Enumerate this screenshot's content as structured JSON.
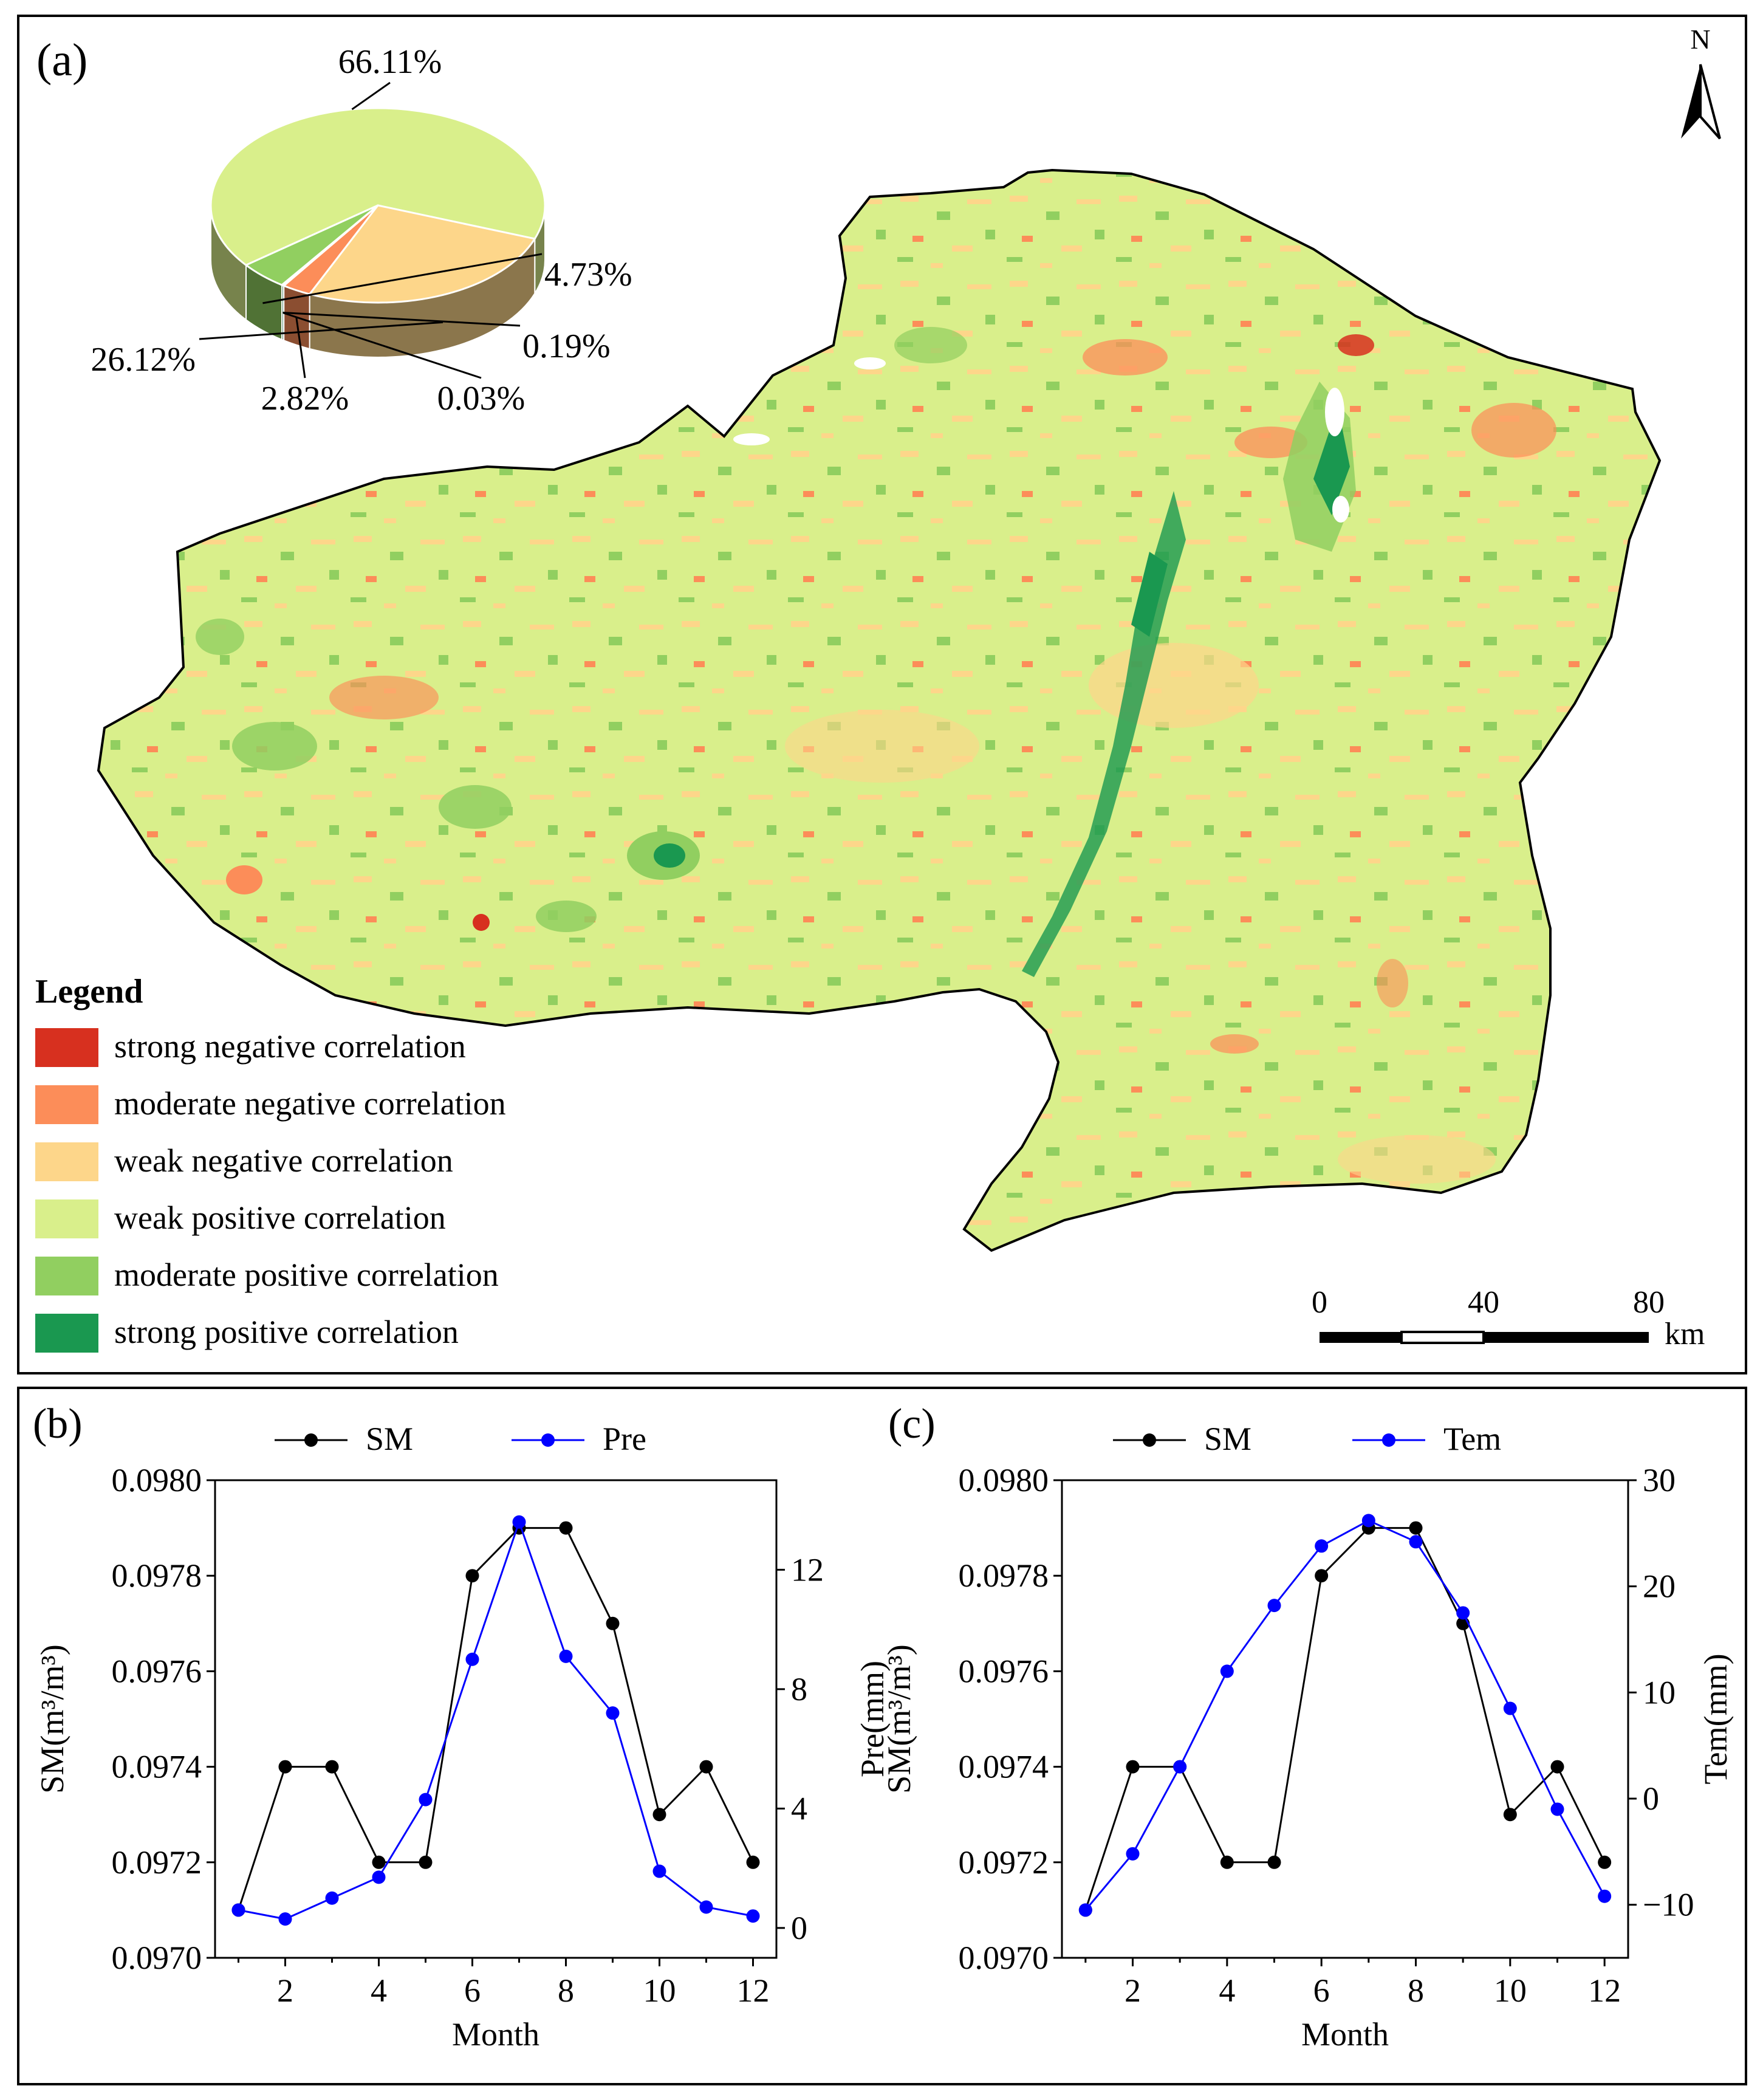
{
  "panel_a": {
    "label": "(a)",
    "north_label": "N",
    "legend": {
      "title": "Legend",
      "items": [
        {
          "label": "strong negative correlation",
          "color": "#d7301f"
        },
        {
          "label": "moderate negative correlation",
          "color": "#fc8d59"
        },
        {
          "label": "weak negative correlation",
          "color": "#fdd68a"
        },
        {
          "label": "weak positive correlation",
          "color": "#d9ef8b"
        },
        {
          "label": "moderate positive correlation",
          "color": "#91cf60"
        },
        {
          "label": "strong positive correlation",
          "color": "#1a9850"
        }
      ]
    },
    "scale_bar": {
      "ticks": [
        "0",
        "40",
        "80"
      ],
      "unit": "km"
    },
    "pie": {
      "type": "pie",
      "slices": [
        {
          "category": "weak positive correlation",
          "value": 66.11,
          "label": "66.11%",
          "color": "#d9ef8b"
        },
        {
          "category": "weak negative correlation",
          "value": 26.12,
          "label": "26.12%",
          "color": "#fdd68a"
        },
        {
          "category": "moderate negative correlation",
          "value": 2.82,
          "label": "2.82%",
          "color": "#fc8d59"
        },
        {
          "category": "strong negative correlation",
          "value": 0.03,
          "label": "0.03%",
          "color": "#d7301f"
        },
        {
          "category": "strong positive correlation",
          "value": 0.19,
          "label": "0.19%",
          "color": "#1a9850"
        },
        {
          "category": "moderate positive correlation",
          "value": 4.73,
          "label": "4.73%",
          "color": "#91cf60"
        }
      ]
    }
  },
  "chart_data": [
    {
      "type": "line",
      "panel_label": "(b)",
      "x": [
        1,
        2,
        3,
        4,
        5,
        6,
        7,
        8,
        9,
        10,
        11,
        12
      ],
      "xlabel": "Month",
      "xticks": [
        2,
        4,
        6,
        8,
        10,
        12
      ],
      "xlim": [
        0.5,
        12.5
      ],
      "series": [
        {
          "name": "SM",
          "axis": "left",
          "color": "#000000",
          "values": [
            0.0971,
            0.0974,
            0.0974,
            0.0972,
            0.0972,
            0.0978,
            0.0979,
            0.0979,
            0.0977,
            0.0973,
            0.0974,
            0.0972
          ]
        },
        {
          "name": "Pre",
          "axis": "right",
          "color": "#0000ff",
          "values": [
            0.6,
            0.3,
            1.0,
            1.7,
            4.3,
            9.0,
            13.6,
            9.1,
            7.2,
            1.9,
            0.7,
            0.4
          ]
        }
      ],
      "ylabel_left": "SM(m³/m³)",
      "ylim_left": [
        0.097,
        0.098
      ],
      "yticks_left": [
        "0.0970",
        "0.0972",
        "0.0974",
        "0.0976",
        "0.0978",
        "0.0980"
      ],
      "ylabel_right": "Pre(mm)",
      "ylim_right": [
        -1.0,
        15.0
      ],
      "yticks_right": [
        0,
        4,
        8,
        12
      ],
      "legend_position": "top"
    },
    {
      "type": "line",
      "panel_label": "(c)",
      "x": [
        1,
        2,
        3,
        4,
        5,
        6,
        7,
        8,
        9,
        10,
        11,
        12
      ],
      "xlabel": "Month",
      "xticks": [
        2,
        4,
        6,
        8,
        10,
        12
      ],
      "xlim": [
        0.5,
        12.5
      ],
      "series": [
        {
          "name": "SM",
          "axis": "left",
          "color": "#000000",
          "values": [
            0.0971,
            0.0974,
            0.0974,
            0.0972,
            0.0972,
            0.0978,
            0.0979,
            0.0979,
            0.0977,
            0.0973,
            0.0974,
            0.0972
          ]
        },
        {
          "name": "Tem",
          "axis": "right",
          "color": "#0000ff",
          "values": [
            -10.5,
            -5.2,
            3.0,
            12.0,
            18.2,
            23.8,
            26.2,
            24.2,
            17.5,
            8.5,
            -1.0,
            -9.2
          ]
        }
      ],
      "ylabel_left": "SM(m³/m³)",
      "ylim_left": [
        0.097,
        0.098
      ],
      "yticks_left": [
        "0.0970",
        "0.0972",
        "0.0974",
        "0.0976",
        "0.0978",
        "0.0980"
      ],
      "ylabel_right": "Tem(mm)",
      "ylim_right": [
        -15,
        30
      ],
      "yticks_right": [
        -10,
        0,
        10,
        20,
        30
      ],
      "legend_position": "top"
    }
  ]
}
